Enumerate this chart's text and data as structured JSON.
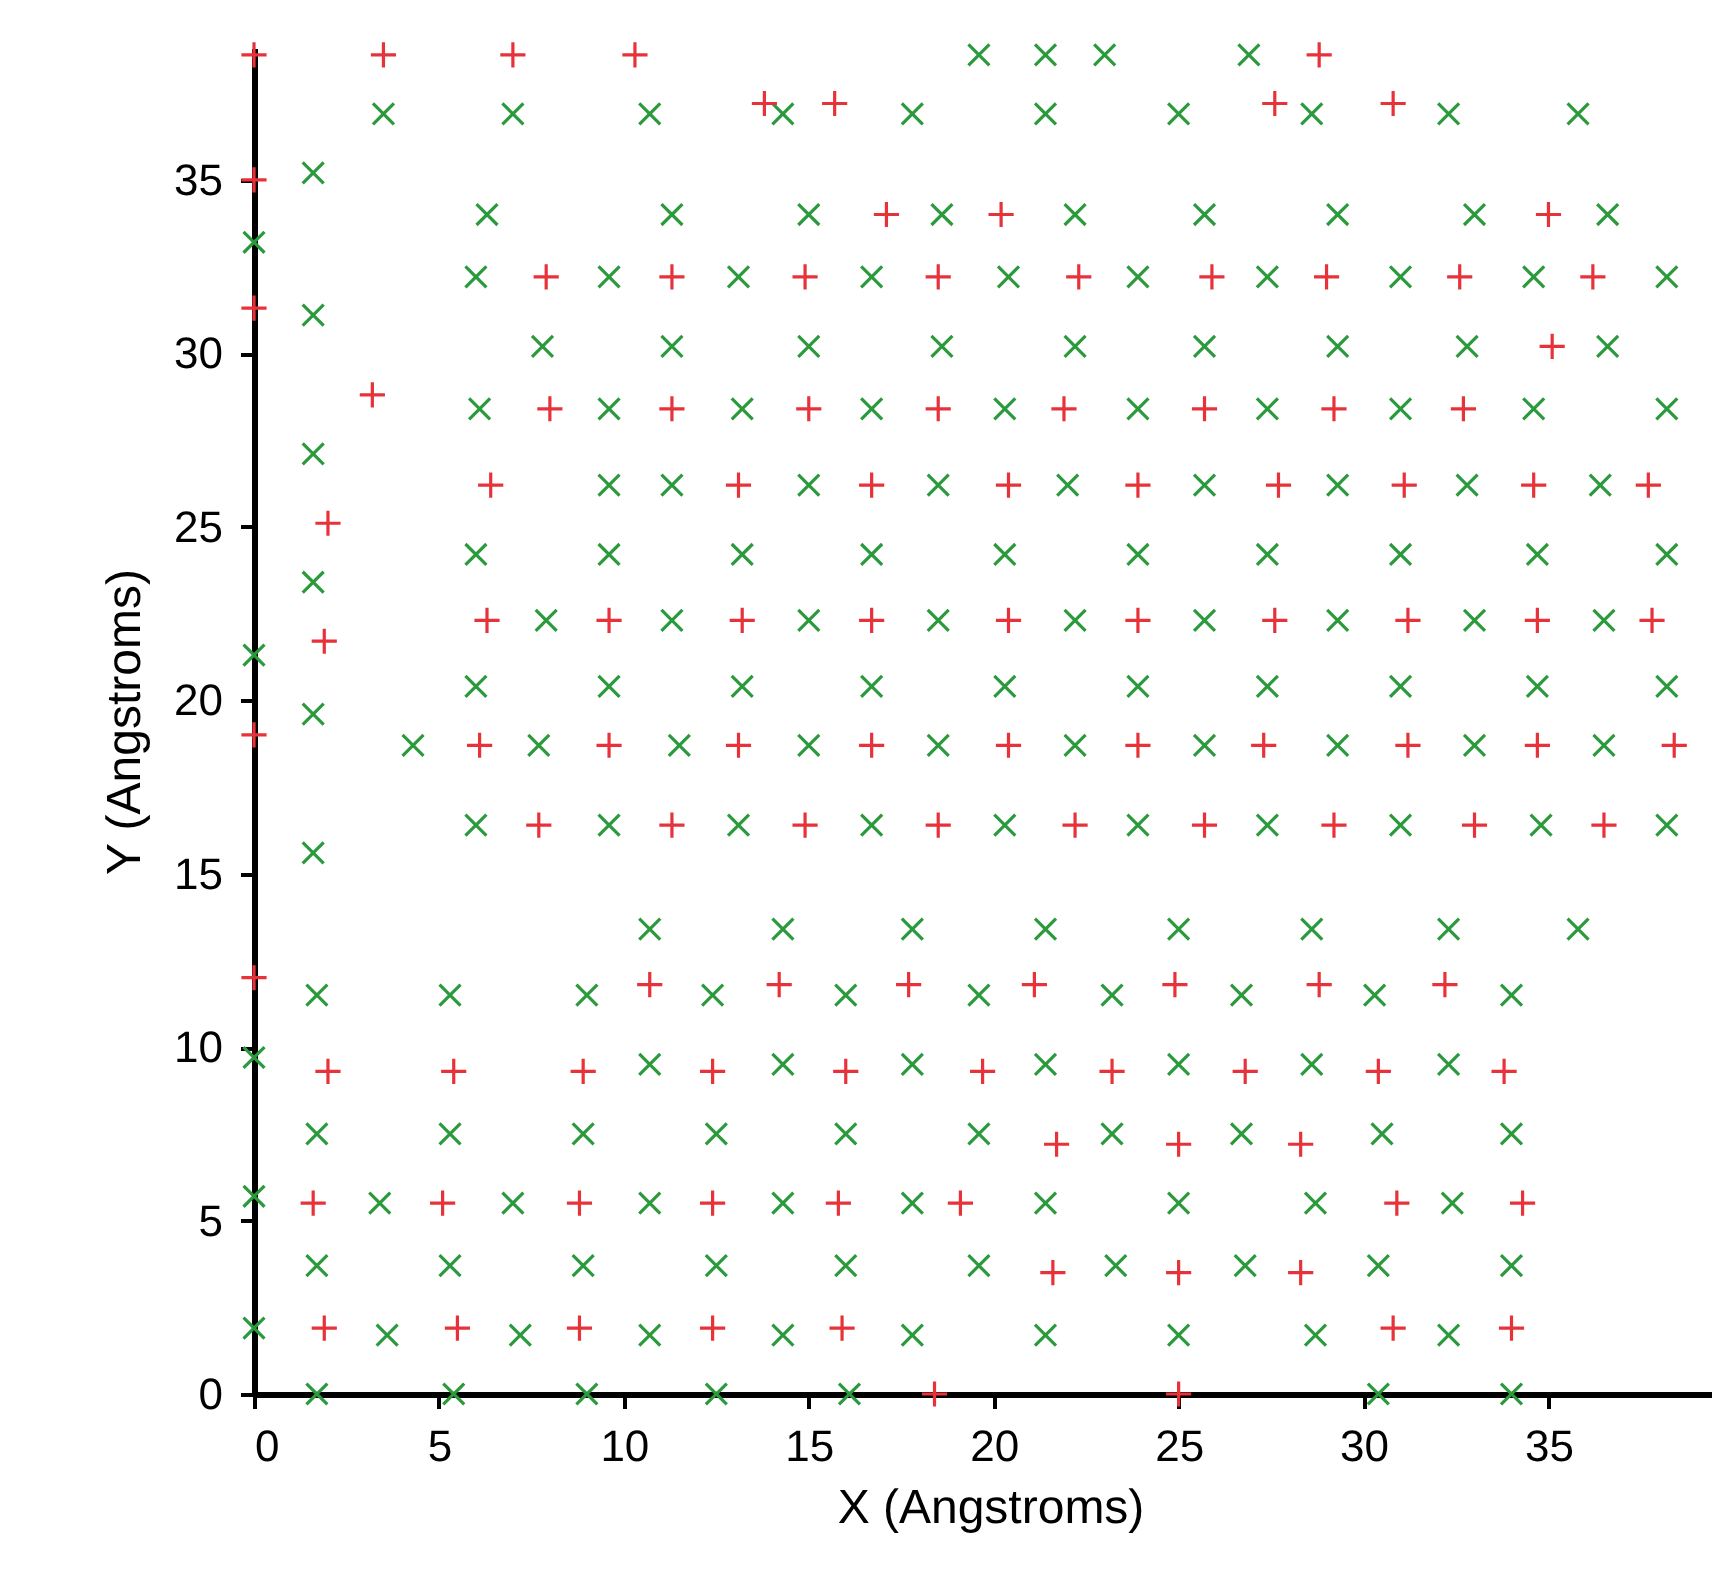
{
  "chart_data": {
    "type": "scatter",
    "xlabel": "X (Angstroms)",
    "ylabel": "Y (Angstroms)",
    "xlim": [
      0,
      39.8
    ],
    "ylim": [
      0,
      38.8
    ],
    "xticks": [
      0,
      5,
      10,
      15,
      20,
      25,
      30,
      35
    ],
    "yticks": [
      0,
      5,
      10,
      15,
      20,
      25,
      30,
      35
    ],
    "grid": false,
    "series": [
      {
        "color": "#2a9a3c",
        "marker": "cross",
        "x": [
          6.3,
          11.3,
          15.0,
          18.6,
          22.2,
          25.7,
          29.3,
          33.0,
          36.6,
          6.0,
          9.6,
          13.1,
          16.7,
          20.4,
          23.9,
          27.4,
          31.0,
          34.6,
          38.2,
          7.8,
          11.3,
          15.0,
          18.6,
          22.2,
          25.7,
          29.3,
          32.8,
          36.6,
          6.1,
          9.6,
          13.2,
          16.7,
          20.3,
          23.9,
          27.4,
          31.0,
          34.6,
          38.2,
          9.6,
          11.3,
          15.0,
          18.5,
          22.0,
          25.7,
          29.3,
          32.8,
          36.4,
          6.0,
          9.6,
          13.2,
          16.7,
          20.3,
          23.9,
          27.4,
          31.0,
          34.7,
          38.2,
          7.9,
          11.3,
          15.0,
          18.5,
          22.2,
          25.7,
          29.3,
          33.0,
          36.5,
          6.0,
          9.6,
          13.2,
          16.7,
          20.3,
          23.9,
          27.4,
          31.0,
          34.7,
          38.2,
          4.3,
          7.7,
          11.5,
          15.0,
          18.5,
          22.2,
          25.7,
          29.3,
          33.0,
          36.5,
          6.0,
          9.6,
          13.1,
          16.7,
          20.3,
          23.9,
          27.4,
          31.0,
          34.8,
          38.2,
          10.7,
          14.3,
          17.8,
          21.4,
          25.0,
          28.6,
          32.3,
          35.8,
          1.7,
          5.3,
          9.0,
          12.4,
          16.0,
          19.6,
          23.2,
          26.7,
          30.3,
          34.0,
          10.7,
          14.3,
          17.8,
          21.4,
          25.0,
          28.6,
          32.3,
          1.7,
          5.3,
          8.9,
          12.5,
          16.0,
          19.6,
          23.2,
          26.7,
          30.5,
          34.0,
          3.4,
          7.0,
          10.7,
          14.3,
          17.8,
          21.4,
          25.0,
          28.7,
          32.4,
          1.7,
          5.3,
          8.9,
          12.5,
          16.0,
          19.6,
          23.3,
          26.8,
          30.4,
          34.0,
          3.6,
          7.2,
          10.7,
          14.3,
          17.8,
          21.4,
          25.0,
          28.7,
          32.3,
          1.7,
          5.4,
          9.0,
          12.5,
          16.1,
          30.4,
          34.0,
          1.6,
          1.6,
          1.6,
          1.6,
          1.6,
          1.6,
          0,
          0,
          0,
          0,
          0,
          3.5,
          7.0,
          10.7,
          14.3,
          17.8,
          21.4,
          25.0,
          28.6,
          32.3,
          35.8,
          19.6,
          21.4,
          23.0,
          26.9
        ],
        "values": [
          34.0,
          34.0,
          34.0,
          34.0,
          34.0,
          34.0,
          34.0,
          34.0,
          34.0,
          32.2,
          32.2,
          32.2,
          32.2,
          32.2,
          32.2,
          32.2,
          32.2,
          32.2,
          32.2,
          30.2,
          30.2,
          30.2,
          30.2,
          30.2,
          30.2,
          30.2,
          30.2,
          30.2,
          28.4,
          28.4,
          28.4,
          28.4,
          28.4,
          28.4,
          28.4,
          28.4,
          28.4,
          28.4,
          26.2,
          26.2,
          26.2,
          26.2,
          26.2,
          26.2,
          26.2,
          26.2,
          26.2,
          24.2,
          24.2,
          24.2,
          24.2,
          24.2,
          24.2,
          24.2,
          24.2,
          24.2,
          24.2,
          22.3,
          22.3,
          22.3,
          22.3,
          22.3,
          22.3,
          22.3,
          22.3,
          22.3,
          20.4,
          20.4,
          20.4,
          20.4,
          20.4,
          20.4,
          20.4,
          20.4,
          20.4,
          20.4,
          18.7,
          18.7,
          18.7,
          18.7,
          18.7,
          18.7,
          18.7,
          18.7,
          18.7,
          18.7,
          16.4,
          16.4,
          16.4,
          16.4,
          16.4,
          16.4,
          16.4,
          16.4,
          16.4,
          16.4,
          13.4,
          13.4,
          13.4,
          13.4,
          13.4,
          13.4,
          13.4,
          13.4,
          11.5,
          11.5,
          11.5,
          11.5,
          11.5,
          11.5,
          11.5,
          11.5,
          11.5,
          11.5,
          9.5,
          9.5,
          9.5,
          9.5,
          9.5,
          9.5,
          9.5,
          7.5,
          7.5,
          7.5,
          7.5,
          7.5,
          7.5,
          7.5,
          7.5,
          7.5,
          7.5,
          5.5,
          5.5,
          5.5,
          5.5,
          5.5,
          5.5,
          5.5,
          5.5,
          5.5,
          3.7,
          3.7,
          3.7,
          3.7,
          3.7,
          3.7,
          3.7,
          3.7,
          3.7,
          3.7,
          1.7,
          1.7,
          1.7,
          1.7,
          1.7,
          1.7,
          1.7,
          1.7,
          1.7,
          0,
          0,
          0,
          0,
          0,
          0,
          0,
          35.2,
          31.1,
          27.1,
          23.4,
          19.6,
          15.6,
          33.2,
          21.3,
          9.7,
          5.7,
          1.9,
          36.9,
          36.9,
          36.9,
          36.9,
          36.9,
          36.9,
          36.9,
          36.9,
          36.9,
          36.9,
          38.6,
          38.6,
          38.6,
          38.6
        ]
      },
      {
        "color": "#e8323a",
        "marker": "plus",
        "x": [
          17.1,
          20.2,
          35.0,
          7.9,
          11.3,
          14.9,
          18.5,
          22.3,
          25.9,
          29.0,
          32.6,
          36.2,
          35.1,
          8.0,
          11.3,
          15.0,
          18.5,
          21.9,
          25.7,
          29.2,
          32.7,
          6.4,
          13.1,
          16.7,
          20.4,
          23.9,
          27.7,
          31.1,
          34.6,
          37.7,
          6.3,
          9.6,
          13.2,
          16.7,
          20.4,
          23.9,
          27.6,
          31.2,
          34.7,
          37.8,
          6.1,
          9.6,
          13.1,
          16.7,
          20.4,
          23.9,
          27.3,
          31.2,
          34.7,
          38.4,
          7.7,
          11.3,
          14.9,
          18.5,
          22.2,
          25.7,
          29.2,
          33.0,
          36.5,
          10.7,
          14.2,
          17.7,
          21.1,
          24.9,
          28.8,
          32.2,
          2.0,
          5.4,
          8.9,
          12.4,
          16.0,
          19.7,
          23.2,
          26.8,
          30.4,
          33.8,
          21.7,
          25.0,
          28.3,
          1.6,
          5.1,
          8.8,
          12.4,
          15.8,
          19.1,
          30.9,
          34.3,
          21.6,
          25.0,
          28.3,
          1.9,
          5.5,
          8.8,
          12.4,
          15.9,
          30.8,
          34.0,
          18.4,
          25.0,
          3.2,
          2.0,
          1.9,
          0,
          0,
          0,
          0,
          13.8,
          15.7,
          27.6,
          30.8,
          0,
          3.5,
          7.0,
          10.3,
          28.8
        ],
        "values": [
          34.0,
          34.0,
          34.0,
          32.2,
          32.2,
          32.2,
          32.2,
          32.2,
          32.2,
          32.2,
          32.2,
          32.2,
          30.2,
          28.4,
          28.4,
          28.4,
          28.4,
          28.4,
          28.4,
          28.4,
          28.4,
          26.2,
          26.2,
          26.2,
          26.2,
          26.2,
          26.2,
          26.2,
          26.2,
          26.2,
          22.3,
          22.3,
          22.3,
          22.3,
          22.3,
          22.3,
          22.3,
          22.3,
          22.3,
          22.3,
          18.7,
          18.7,
          18.7,
          18.7,
          18.7,
          18.7,
          18.7,
          18.7,
          18.7,
          18.7,
          16.4,
          16.4,
          16.4,
          16.4,
          16.4,
          16.4,
          16.4,
          16.4,
          16.4,
          11.8,
          11.8,
          11.8,
          11.8,
          11.8,
          11.8,
          11.8,
          9.3,
          9.3,
          9.3,
          9.3,
          9.3,
          9.3,
          9.3,
          9.3,
          9.3,
          9.3,
          7.2,
          7.2,
          7.2,
          5.5,
          5.5,
          5.5,
          5.5,
          5.5,
          5.5,
          5.5,
          5.5,
          3.5,
          3.5,
          3.5,
          1.9,
          1.9,
          1.9,
          1.9,
          1.9,
          1.9,
          1.9,
          0,
          0,
          28.8,
          25.1,
          21.7,
          31.3,
          35.0,
          19.0,
          12.0,
          37.2,
          37.2,
          37.2,
          37.2,
          38.6,
          38.6,
          38.6,
          38.6,
          38.6
        ]
      }
    ]
  }
}
